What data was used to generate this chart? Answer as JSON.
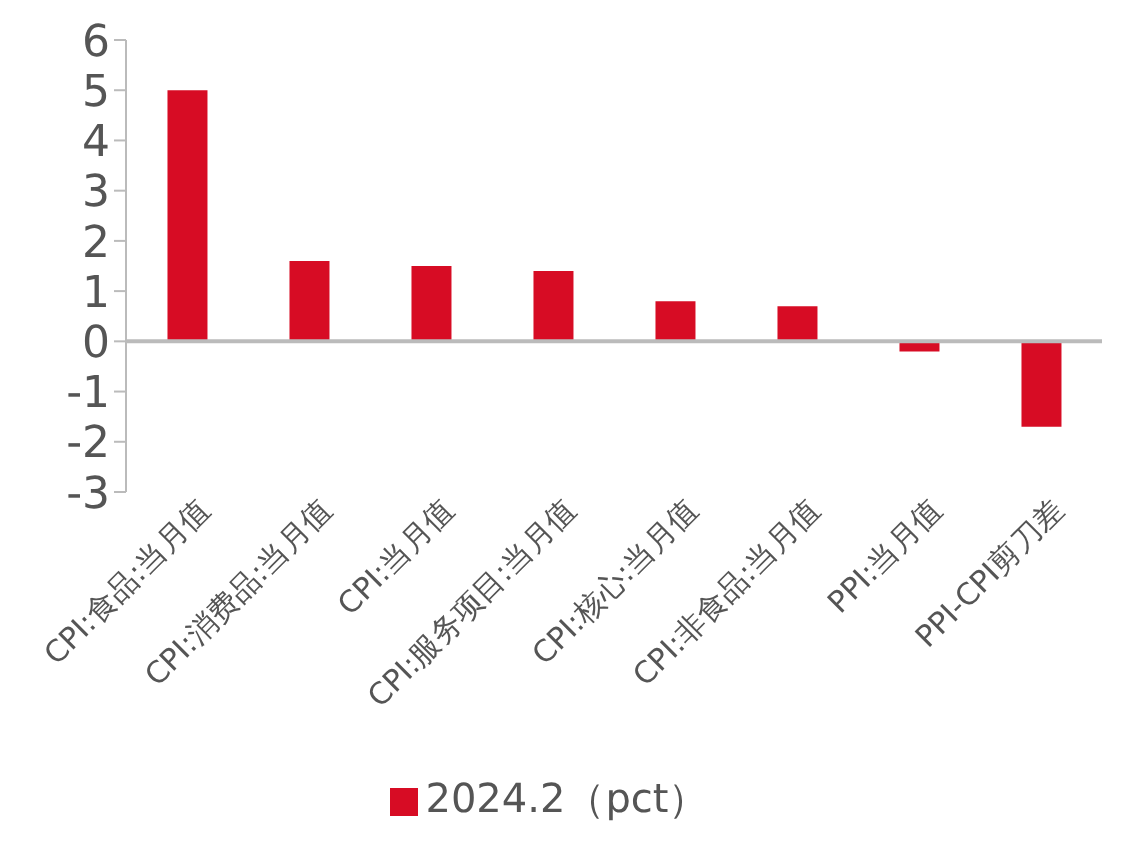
{
  "chart_data": {
    "type": "bar",
    "categories": [
      "CPI:食品:当月值",
      "CPI:消费品:当月值",
      "CPI:当月值",
      "CPI:服务项目:当月值",
      "CPI:核心:当月值",
      "CPI:非食品:当月值",
      "PPI:当月值",
      "PPI-CPI剪刀差"
    ],
    "series": [
      {
        "name": "2024.2（pct）",
        "color": "#d70c24",
        "values": [
          5.0,
          1.6,
          1.5,
          1.4,
          0.8,
          0.7,
          -0.2,
          -1.7
        ]
      }
    ],
    "ylim": [
      -3,
      6
    ],
    "yticks": [
      -3,
      -2,
      -1,
      0,
      1,
      2,
      3,
      4,
      5,
      6
    ],
    "ref_lines": [
      {
        "axis": "y",
        "value": 0,
        "color": "#bbbbbb"
      }
    ],
    "legend": "bottom"
  }
}
